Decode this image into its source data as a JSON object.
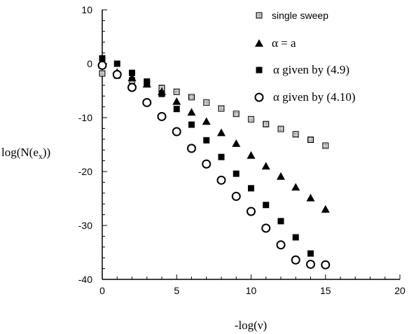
{
  "chart_data": {
    "type": "scatter",
    "title": "",
    "xlabel": "-log(ν)",
    "ylabel": "log(N(e",
    "ylabel_sub": "x",
    "ylabel_tail": "))",
    "xlim": [
      0,
      20
    ],
    "ylim": [
      -40,
      10
    ],
    "xticks": [
      0,
      5,
      10,
      15,
      20
    ],
    "yticks": [
      10,
      0,
      -10,
      -20,
      -30,
      -40
    ],
    "xticks_labels": [
      "0",
      "5",
      "10",
      "15",
      "20"
    ],
    "yticks_labels": [
      "10",
      "0",
      "-10",
      "-20",
      "-30",
      "-40"
    ],
    "legend_position": "top-right",
    "series": [
      {
        "name": "single sweep",
        "marker": "dotted-square",
        "x": [
          0,
          1,
          2,
          3,
          4,
          5,
          6,
          7,
          8,
          9,
          10,
          11,
          12,
          13,
          14,
          15
        ],
        "y": [
          -1.8,
          -2.2,
          -3.1,
          -3.7,
          -4.5,
          -5.2,
          -6.2,
          -7.2,
          -8.3,
          -9.3,
          -10.3,
          -11.2,
          -12.1,
          -13.1,
          -14.1,
          -15.2
        ]
      },
      {
        "name": "α = a",
        "marker": "filled-triangle",
        "x": [
          0,
          1,
          2,
          3,
          4,
          5,
          6,
          7,
          8,
          9,
          10,
          11,
          12,
          13,
          14,
          15
        ],
        "y": [
          -0.2,
          -1.6,
          -2.6,
          -3.8,
          -5.2,
          -7.0,
          -9.0,
          -10.7,
          -12.8,
          -14.8,
          -17.0,
          -19.0,
          -20.9,
          -22.9,
          -24.9,
          -27.0
        ]
      },
      {
        "name": "α given by (4.9)",
        "marker": "filled-square",
        "x": [
          0,
          1,
          2,
          3,
          4,
          5,
          6,
          7,
          8,
          9,
          10,
          11,
          12,
          13,
          14
        ],
        "y": [
          1.0,
          0.0,
          -1.7,
          -3.3,
          -5.6,
          -8.4,
          -11.3,
          -14.2,
          -17.3,
          -20.4,
          -23.1,
          -26.2,
          -29.2,
          -32.2,
          -35.2
        ]
      },
      {
        "name": "α given by (4.10)",
        "marker": "open-circle",
        "x": [
          0,
          1,
          2,
          3,
          4,
          5,
          6,
          7,
          8,
          9,
          10,
          11,
          12,
          13,
          14,
          15
        ],
        "y": [
          -0.3,
          -2.0,
          -4.4,
          -7.2,
          -9.8,
          -12.6,
          -15.7,
          -18.6,
          -21.6,
          -24.6,
          -27.4,
          -30.5,
          -33.6,
          -36.4,
          -37.2,
          -37.3
        ]
      }
    ]
  }
}
